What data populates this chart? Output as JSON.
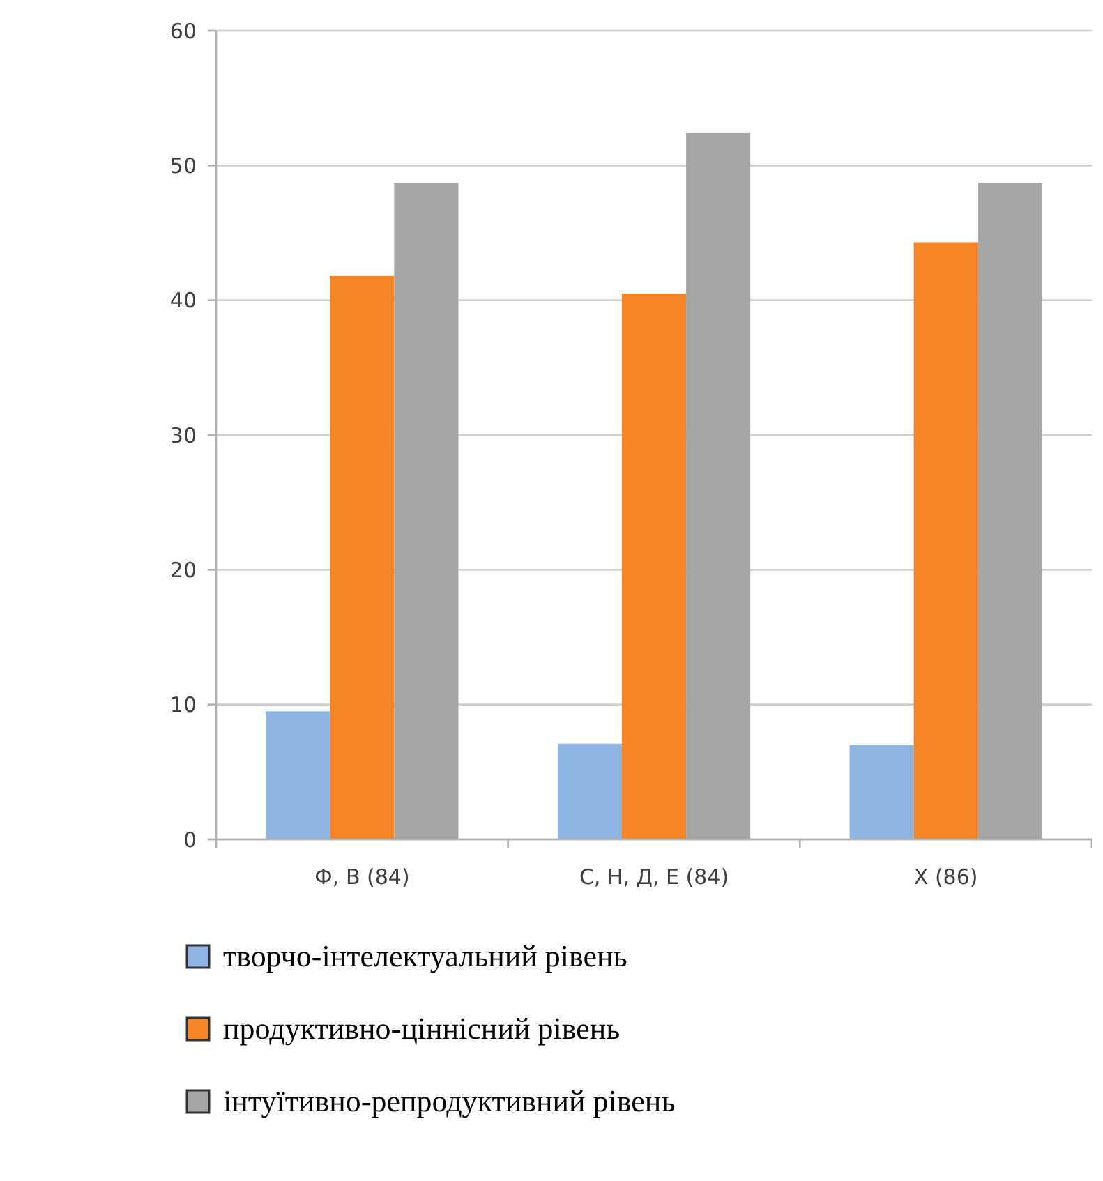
{
  "chart_data": {
    "type": "bar",
    "categories": [
      "Ф, В (84)",
      "С, Н, Д, Е (84)",
      "Х (86)"
    ],
    "series": [
      {
        "name": "творчо-інтелектуальний рівень",
        "color": "#8db3e2",
        "values": [
          9.5,
          7.1,
          7.0
        ]
      },
      {
        "name": "продуктивно-ціннісний рівень",
        "color": "#f58426",
        "values": [
          41.8,
          40.5,
          44.3
        ]
      },
      {
        "name": "інтуїтивно-репродуктивний рівень",
        "color": "#a6a6a6",
        "values": [
          48.7,
          52.4,
          48.7
        ]
      }
    ],
    "ylim": [
      0,
      60
    ],
    "yticks": [
      0,
      10,
      20,
      30,
      40,
      50,
      60
    ],
    "grid": "y",
    "legend": "bottom"
  }
}
